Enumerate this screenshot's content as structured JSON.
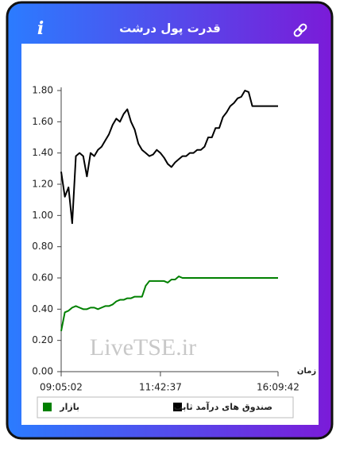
{
  "header": {
    "title": "قدرت پول درشت",
    "info_icon": "i"
  },
  "watermark": "LiveTSE.ir",
  "chart_data": {
    "type": "line",
    "x_label": "زمان",
    "categories": [
      "09:05:02",
      null,
      null,
      null,
      null,
      null,
      null,
      null,
      null,
      null,
      null,
      null,
      null,
      null,
      null,
      null,
      null,
      null,
      null,
      null,
      null,
      null,
      null,
      null,
      null,
      null,
      null,
      "11:42:37",
      null,
      null,
      null,
      null,
      null,
      null,
      null,
      null,
      null,
      null,
      null,
      null,
      null,
      null,
      null,
      null,
      null,
      null,
      null,
      null,
      null,
      null,
      null,
      null,
      null,
      null,
      null,
      null,
      null,
      null,
      null,
      "16:09:42"
    ],
    "series": [
      {
        "name": "صندوق های درآمد ثابت",
        "color": "#000000",
        "values": [
          1.28,
          1.12,
          1.18,
          0.95,
          1.38,
          1.4,
          1.38,
          1.25,
          1.4,
          1.38,
          1.42,
          1.44,
          1.48,
          1.52,
          1.58,
          1.62,
          1.6,
          1.65,
          1.68,
          1.6,
          1.55,
          1.46,
          1.42,
          1.4,
          1.38,
          1.39,
          1.42,
          1.4,
          1.37,
          1.33,
          1.31,
          1.34,
          1.36,
          1.38,
          1.38,
          1.4,
          1.4,
          1.42,
          1.42,
          1.44,
          1.5,
          1.5,
          1.56,
          1.56,
          1.63,
          1.66,
          1.7,
          1.72,
          1.75,
          1.76,
          1.8,
          1.79,
          1.7,
          1.7,
          1.7,
          1.7,
          1.7,
          1.7,
          1.7,
          1.7
        ]
      },
      {
        "name": "بازار",
        "color": "#008000",
        "values": [
          0.26,
          0.38,
          0.39,
          0.41,
          0.42,
          0.41,
          0.4,
          0.4,
          0.41,
          0.41,
          0.4,
          0.41,
          0.42,
          0.42,
          0.43,
          0.45,
          0.46,
          0.46,
          0.47,
          0.47,
          0.48,
          0.48,
          0.48,
          0.55,
          0.58,
          0.58,
          0.58,
          0.58,
          0.58,
          0.57,
          0.59,
          0.59,
          0.61,
          0.6,
          0.6,
          0.6,
          0.6,
          0.6,
          0.6,
          0.6,
          0.6,
          0.6,
          0.6,
          0.6,
          0.6,
          0.6,
          0.6,
          0.6,
          0.6,
          0.6,
          0.6,
          0.6,
          0.6,
          0.6,
          0.6,
          0.6,
          0.6,
          0.6,
          0.6,
          0.6
        ]
      }
    ],
    "ylim": [
      0,
      1.8
    ],
    "yticks": [
      {
        "value": 0,
        "label": "0.00"
      },
      {
        "value": 0.2,
        "label": "0.20"
      },
      {
        "value": 0.4,
        "label": "0.40"
      },
      {
        "value": 0.6,
        "label": "0.60"
      },
      {
        "value": 0.8,
        "label": "0.80"
      },
      {
        "value": 1,
        "label": "1.00"
      },
      {
        "value": 1.2,
        "label": "1.20"
      },
      {
        "value": 1.4,
        "label": "1.40"
      },
      {
        "value": 1.6,
        "label": "1.60"
      },
      {
        "value": 1.8,
        "label": "1.80"
      }
    ],
    "grid": false
  }
}
